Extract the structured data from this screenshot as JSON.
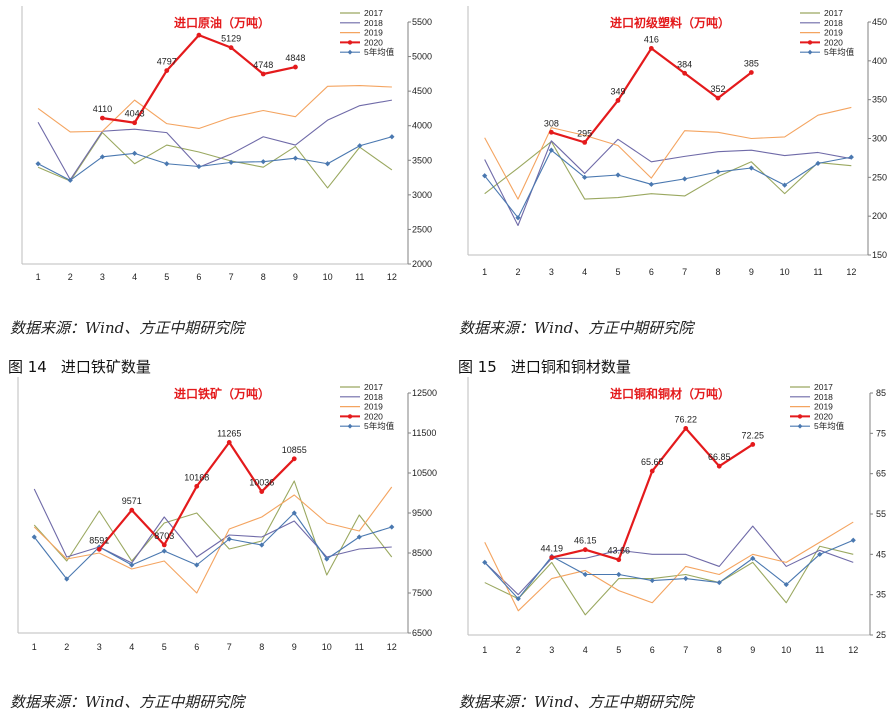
{
  "figures": [
    {
      "number": "图 14",
      "caption": "进口铁矿数量"
    },
    {
      "number": "图 15",
      "caption": "进口铜和铜材数量"
    }
  ],
  "source_notes": [
    "数据来源：Wind、方正中期研究院",
    "数据来源：Wind、方正中期研究院",
    "数据来源：Wind、方正中期研究院",
    "数据来源：Wind、方正中期研究院"
  ],
  "series_colors": {
    "2017": "#9aa860",
    "2018": "#6f6aa8",
    "2019": "#f4a460",
    "2020": "#e41a1c",
    "5年均值": "#4a78b0"
  },
  "chart_data": [
    {
      "type": "line",
      "title": "进口原油（万吨）",
      "x": [
        1,
        2,
        3,
        4,
        5,
        6,
        7,
        8,
        9,
        10,
        11,
        12
      ],
      "ylim": [
        2000,
        5500
      ],
      "yticks": [
        2000,
        2500,
        3000,
        3500,
        4000,
        4500,
        5000,
        5500
      ],
      "series": [
        {
          "name": "2017",
          "values": [
            3400,
            3200,
            3900,
            3450,
            3720,
            3620,
            3490,
            3400,
            3700,
            3100,
            3690,
            3360
          ]
        },
        {
          "name": "2018",
          "values": [
            4050,
            3220,
            3920,
            3950,
            3900,
            3400,
            3590,
            3840,
            3720,
            4080,
            4290,
            4370
          ]
        },
        {
          "name": "2019",
          "values": [
            4250,
            3910,
            3920,
            4370,
            4030,
            3960,
            4120,
            4220,
            4130,
            4570,
            4580,
            4560
          ]
        },
        {
          "name": "2020",
          "values": [
            4110,
            4043,
            4797,
            5310,
            5129,
            4748,
            4848
          ],
          "x": [
            3,
            4,
            5,
            6,
            7,
            8,
            9
          ],
          "labels": [
            "4110",
            "4043",
            "4797",
            "",
            "5129",
            "4748",
            "4848"
          ]
        },
        {
          "name": "5年均值",
          "values": [
            3450,
            3210,
            3550,
            3600,
            3450,
            3410,
            3470,
            3480,
            3530,
            3450,
            3710,
            3840
          ]
        }
      ]
    },
    {
      "type": "line",
      "title": "进口初级塑料（万吨）",
      "x": [
        1,
        2,
        3,
        4,
        5,
        6,
        7,
        8,
        9,
        10,
        11,
        12
      ],
      "ylim": [
        150,
        450
      ],
      "yticks": [
        150,
        200,
        250,
        300,
        350,
        400,
        450
      ],
      "series": [
        {
          "name": "2017",
          "values": [
            229,
            262,
            296,
            222,
            224,
            229,
            226,
            251,
            270,
            229,
            269,
            265
          ]
        },
        {
          "name": "2018",
          "values": [
            273,
            188,
            297,
            255,
            299,
            270,
            277,
            283,
            285,
            278,
            282,
            274
          ]
        },
        {
          "name": "2019",
          "values": [
            301,
            222,
            314,
            304,
            291,
            249,
            310,
            308,
            300,
            302,
            330,
            340
          ]
        },
        {
          "name": "2020",
          "values": [
            308,
            295,
            349,
            416,
            384,
            352,
            385
          ],
          "x": [
            3,
            4,
            5,
            6,
            7,
            8,
            9
          ],
          "labels": [
            "308",
            "295",
            "349",
            "416",
            "384",
            "352",
            "385"
          ]
        },
        {
          "name": "5年均值",
          "values": [
            252,
            198,
            285,
            250,
            253,
            241,
            248,
            257,
            262,
            240,
            268,
            276
          ]
        }
      ]
    },
    {
      "type": "line",
      "title": "进口铁矿（万吨）",
      "x": [
        1,
        2,
        3,
        4,
        5,
        6,
        7,
        8,
        9,
        10,
        11,
        12
      ],
      "ylim": [
        6500,
        12500
      ],
      "yticks": [
        6500,
        7500,
        8500,
        9500,
        10500,
        11500,
        12500
      ],
      "series": [
        {
          "name": "2017",
          "values": [
            9200,
            8300,
            9550,
            8300,
            9250,
            9500,
            8600,
            8800,
            10300,
            7950,
            9450,
            8400
          ]
        },
        {
          "name": "2018",
          "values": [
            10100,
            8400,
            8650,
            8250,
            9400,
            8400,
            8950,
            8900,
            9300,
            8400,
            8600,
            8650
          ]
        },
        {
          "name": "2019",
          "values": [
            9150,
            8350,
            8500,
            8100,
            8300,
            7500,
            9100,
            9400,
            9950,
            9250,
            9050,
            10150
          ]
        },
        {
          "name": "2020",
          "values": [
            8591,
            9571,
            8703,
            10168,
            11265,
            10036,
            10855
          ],
          "x": [
            3,
            4,
            5,
            6,
            7,
            8,
            9
          ],
          "labels": [
            "8591",
            "9571",
            "8703",
            "10168",
            "11265",
            "10036",
            "10855"
          ]
        },
        {
          "name": "5年均值",
          "values": [
            8900,
            7850,
            8650,
            8200,
            8550,
            8200,
            8850,
            8700,
            9500,
            8350,
            8900,
            9150
          ]
        }
      ]
    },
    {
      "type": "line",
      "title": "进口铜和铜材（万吨）",
      "x": [
        1,
        2,
        3,
        4,
        5,
        6,
        7,
        8,
        9,
        10,
        11,
        12
      ],
      "ylim": [
        25,
        85
      ],
      "yticks": [
        25,
        35,
        45,
        55,
        65,
        75,
        85
      ],
      "series": [
        {
          "name": "2017",
          "values": [
            38,
            34,
            43,
            30,
            39,
            39,
            40,
            38,
            43,
            33,
            47,
            45
          ]
        },
        {
          "name": "2018",
          "values": [
            43,
            35,
            44,
            44,
            46,
            45,
            45,
            42,
            52,
            42,
            46,
            43
          ]
        },
        {
          "name": "2019",
          "values": [
            48,
            31,
            39,
            41,
            36,
            33,
            42,
            40,
            45,
            43,
            48,
            53
          ]
        },
        {
          "name": "2020",
          "values": [
            44.19,
            46.15,
            43.66,
            65.65,
            76.22,
            66.85,
            72.25
          ],
          "x": [
            3,
            4,
            5,
            6,
            7,
            8,
            9
          ],
          "labels": [
            "44.19",
            "46.15",
            "43.66",
            "65.65",
            "76.22",
            "66.85",
            "72.25"
          ]
        },
        {
          "name": "5年均值",
          "values": [
            43,
            34,
            44.5,
            40,
            40,
            38.5,
            39,
            38,
            44,
            37.5,
            45,
            48.5
          ]
        }
      ]
    }
  ]
}
